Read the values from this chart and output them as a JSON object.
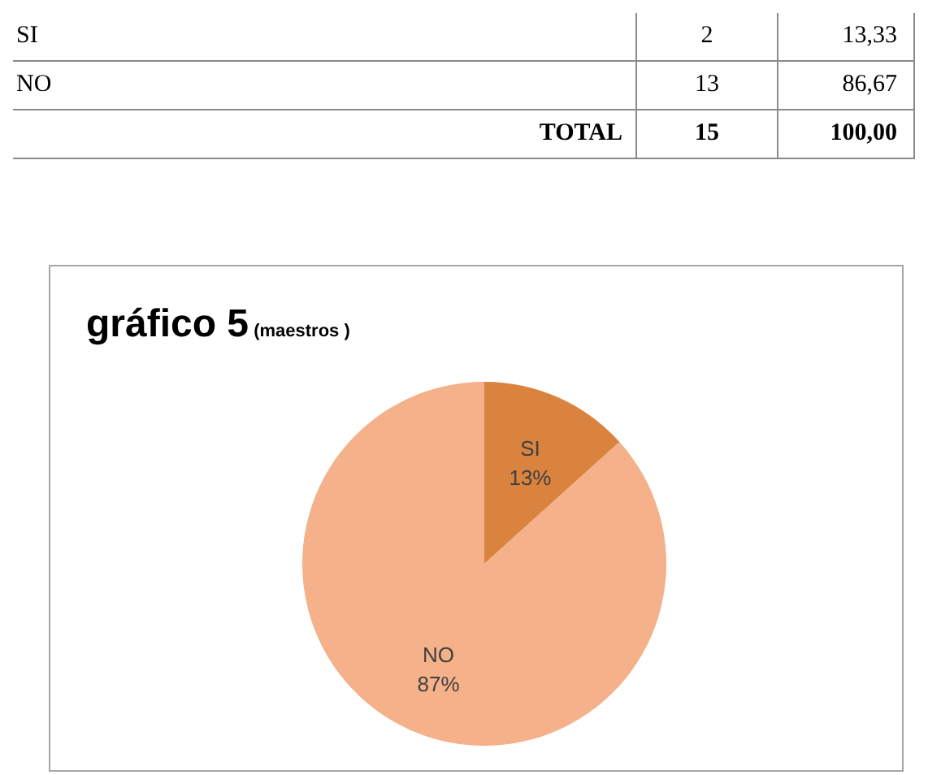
{
  "chart_data": [
    {
      "type": "other",
      "annotations": [
        "SI",
        "2",
        "13,33",
        "NO",
        "13",
        "86,67",
        "TOTAL",
        "15",
        "100,00"
      ]
    },
    {
      "type": "pie",
      "title": "gráfico 5",
      "subtitle": "(maestros )",
      "categories": [
        "SI",
        "NO"
      ],
      "values": [
        13.33,
        86.67
      ],
      "colors": [
        "#d9833e",
        "#f4b18a"
      ],
      "value_labels": [
        "13%",
        "87%"
      ]
    }
  ]
}
